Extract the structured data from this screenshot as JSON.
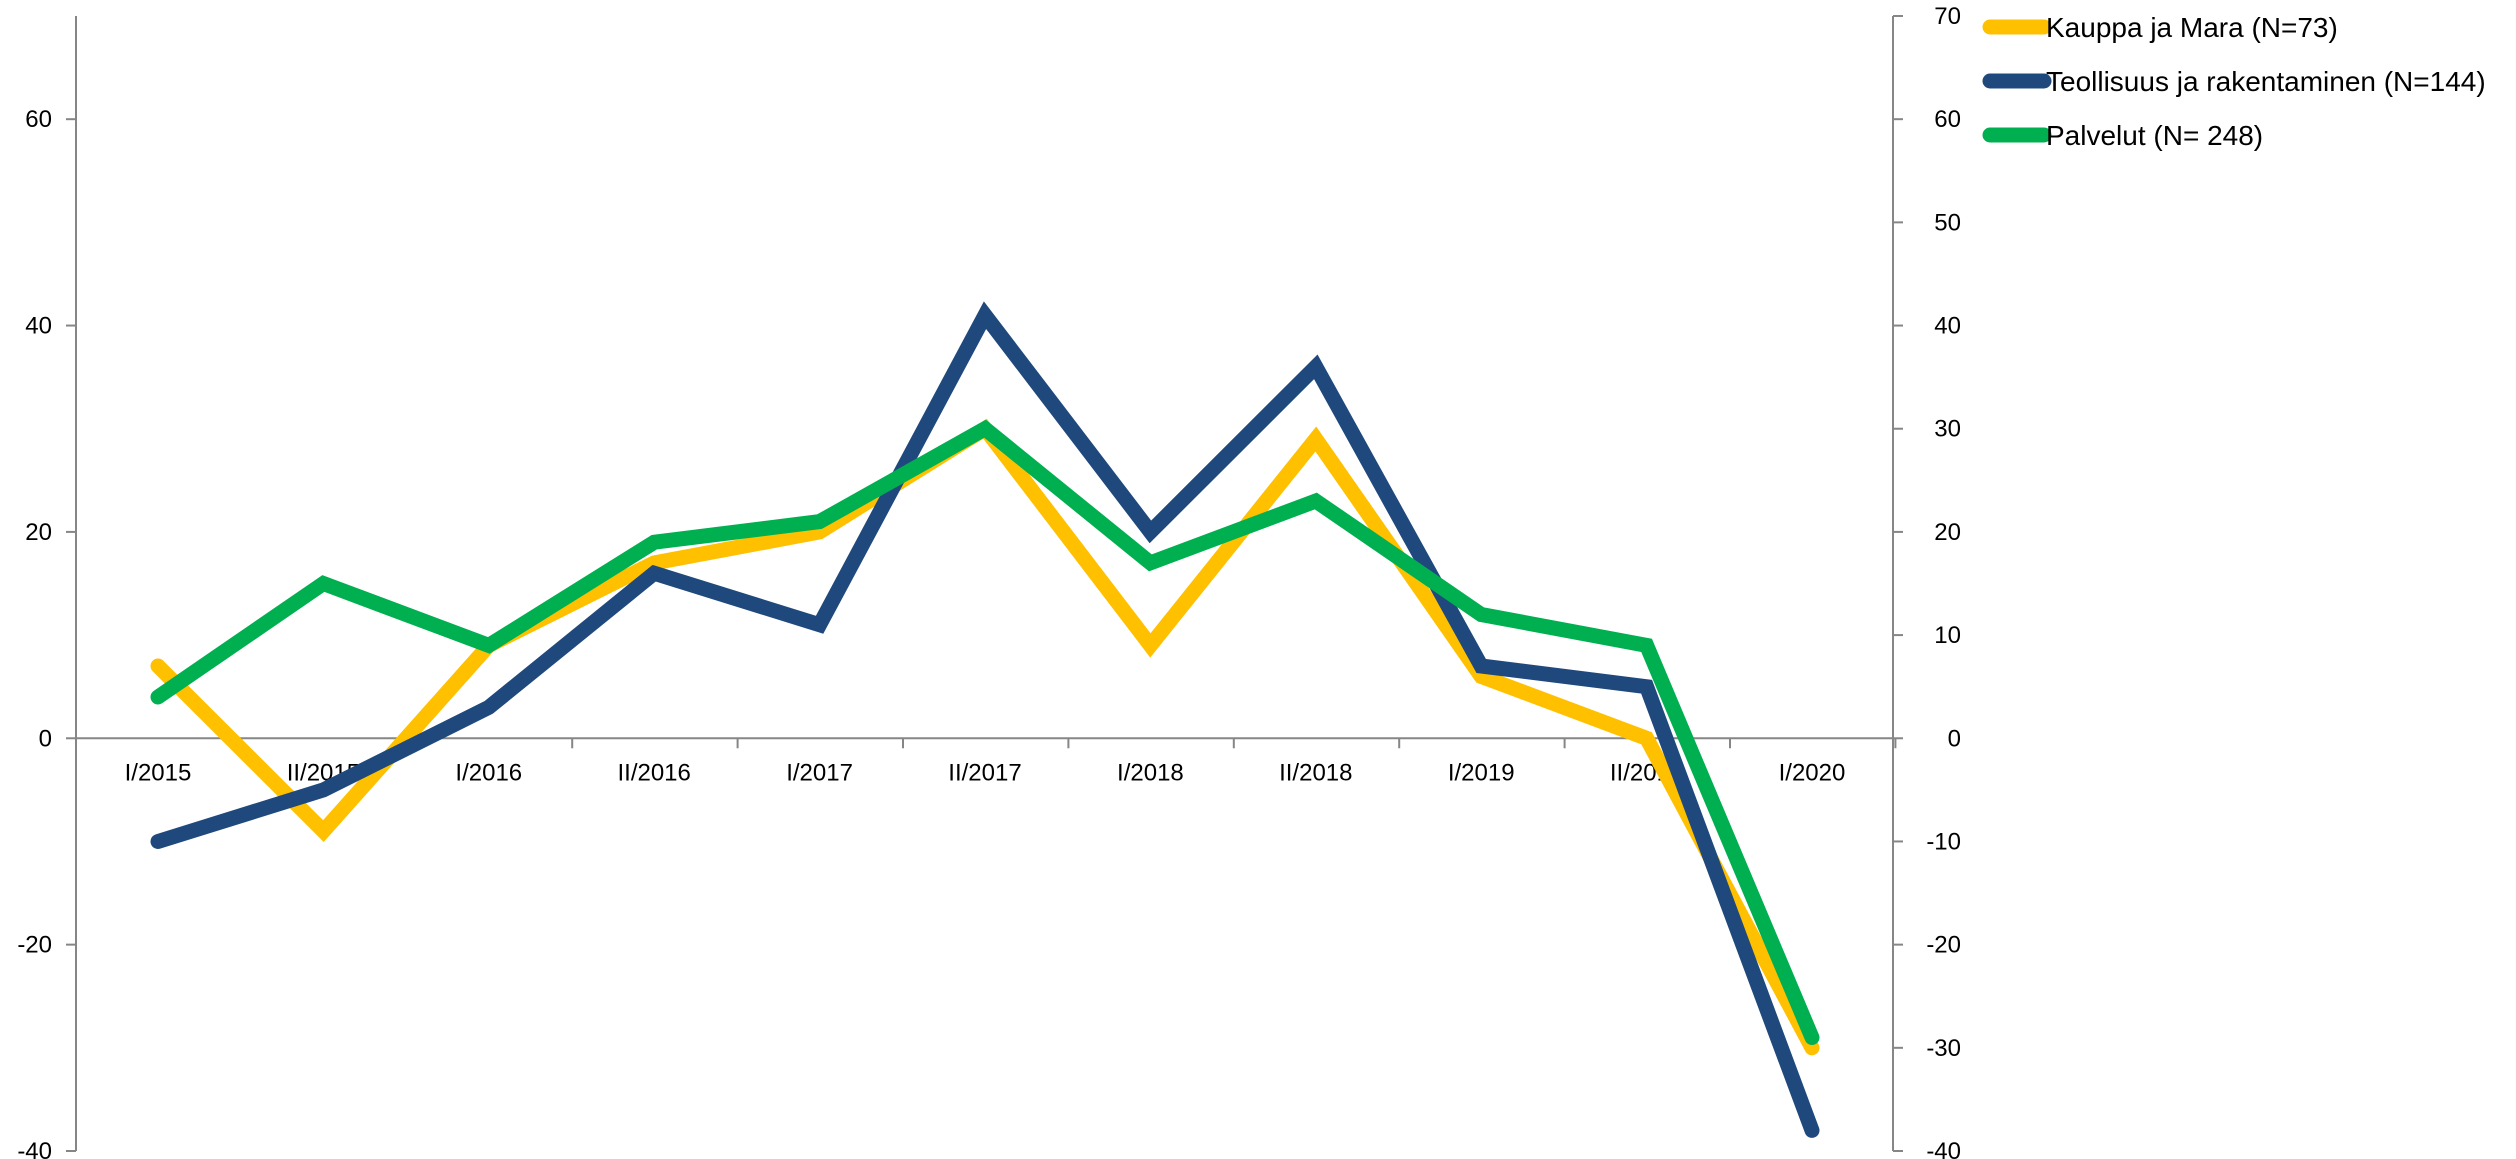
{
  "chart_data": {
    "type": "line",
    "title": "",
    "xlabel": "",
    "ylabel": "",
    "categories": [
      "I/2015",
      "II/2015",
      "I/2016",
      "II/2016",
      "I/2017",
      "II/2017",
      "I/2018",
      "II/2018",
      "I/2019",
      "II/2019",
      "I/2020"
    ],
    "y_left": {
      "lim": [
        -40,
        70
      ],
      "ticks": [
        "60",
        "40",
        "20",
        "0",
        "-20",
        "-40"
      ],
      "tick_values": [
        60,
        40,
        20,
        0,
        -20,
        -40
      ]
    },
    "y_right": {
      "lim": [
        -40,
        70
      ],
      "ticks": [
        "70",
        "60",
        "50",
        "40",
        "30",
        "20",
        "10",
        "0",
        "-10",
        "-20",
        "-30",
        "-40"
      ],
      "tick_values": [
        70,
        60,
        50,
        40,
        30,
        20,
        10,
        0,
        -10,
        -20,
        -30,
        -40
      ]
    },
    "grid": false,
    "legend_position": "top-right",
    "series": [
      {
        "name": "Kauppa ja Mara (N=73)",
        "color": "#FFC000",
        "values": [
          7,
          -9,
          9,
          17,
          20,
          30,
          9,
          29,
          6,
          0,
          -30
        ]
      },
      {
        "name": "Teollisuus ja rakentaminen (N=144)",
        "color": "#1F497D",
        "values": [
          -10,
          -5,
          3,
          16,
          11,
          41,
          20,
          36,
          7,
          5,
          -38
        ]
      },
      {
        "name": "Palvelut (N= 248)",
        "color": "#00B050",
        "values": [
          4,
          15,
          9,
          19,
          21,
          30,
          17,
          23,
          12,
          9,
          -29
        ]
      }
    ]
  }
}
